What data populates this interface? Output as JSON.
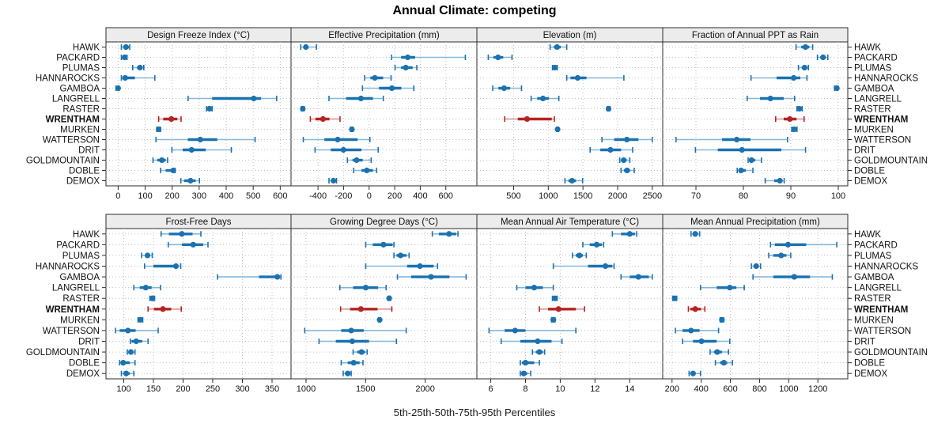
{
  "title": "Annual Climate: competing",
  "caption": "5th-25th-50th-75th-95th Percentiles",
  "sites": [
    "HAWK",
    "PACKARD",
    "PLUMAS",
    "HANNAROCKS",
    "GAMBOA",
    "LANGRELL",
    "RASTER",
    "WRENTHAM",
    "MURKEN",
    "WATTERSON",
    "DRIT",
    "GOLDMOUNTAIN",
    "DOBLE",
    "DEMOX"
  ],
  "highlight_site": "WRENTHAM",
  "colors": {
    "normal": "#1b72b0",
    "normal_light": "#85b7d9",
    "highlight": "#b62323",
    "highlight_light": "#d99090",
    "grid": "#bfbfbf",
    "border": "#2b2b2b",
    "strip_bg": "#ececec",
    "text": "#111111"
  },
  "chart_data": {
    "type": "dotplot-percentiles",
    "percentile_labels": [
      "5th",
      "25th",
      "50th",
      "75th",
      "95th"
    ],
    "note": "values arrays are [p5,p25,p50,p75,p95] per site, in sites order",
    "panels": [
      {
        "title": "Design Freeze Index (°C)",
        "ticks": [
          0,
          100,
          200,
          300,
          400,
          500,
          600
        ],
        "xlim": [
          -45,
          640
        ],
        "values": [
          [
            12,
            19,
            29,
            40,
            43
          ],
          [
            12,
            16,
            24,
            31,
            33
          ],
          [
            54,
            70,
            81,
            90,
            95
          ],
          [
            12,
            16,
            26,
            62,
            136
          ],
          [
            -8,
            -3,
            0,
            2,
            3
          ],
          [
            259,
            348,
            502,
            529,
            587
          ],
          [
            327,
            333,
            338,
            343,
            348
          ],
          [
            150,
            167,
            197,
            219,
            233
          ],
          [
            143,
            146,
            150,
            154,
            157
          ],
          [
            140,
            258,
            304,
            367,
            507
          ],
          [
            199,
            239,
            272,
            324,
            419
          ],
          [
            129,
            145,
            162,
            176,
            183
          ],
          [
            157,
            176,
            204,
            208,
            211
          ],
          [
            232,
            244,
            268,
            287,
            301
          ]
        ]
      },
      {
        "title": "Effective Precipitation (mm)",
        "ticks": [
          -400,
          -200,
          0,
          200,
          400,
          600
        ],
        "xlim": [
          -611,
          843
        ],
        "values": [
          [
            -535,
            -510,
            -495,
            -475,
            -412
          ],
          [
            176,
            250,
            302,
            360,
            753
          ],
          [
            203,
            250,
            287,
            340,
            373
          ],
          [
            -35,
            10,
            45,
            110,
            172
          ],
          [
            -52,
            77,
            178,
            252,
            350
          ],
          [
            -314,
            -180,
            -64,
            30,
            111
          ],
          [
            -530,
            -525,
            -519,
            -513,
            -508
          ],
          [
            -460,
            -420,
            -361,
            -310,
            -228
          ],
          [
            -145,
            -140,
            -135,
            -130,
            -125
          ],
          [
            -515,
            -350,
            -246,
            -90,
            6
          ],
          [
            -423,
            -300,
            -201,
            -60,
            71
          ],
          [
            -170,
            -130,
            -98,
            -50,
            16
          ],
          [
            -121,
            -60,
            -18,
            30,
            59
          ],
          [
            -314,
            -295,
            -279,
            -265,
            -255
          ]
        ]
      },
      {
        "title": "Elevation (m)",
        "ticks": [
          500,
          1000,
          1500,
          2000,
          2500
        ],
        "xlim": [
          -30,
          2650
        ],
        "values": [
          [
            1026,
            1080,
            1126,
            1180,
            1266
          ],
          [
            134,
            210,
            276,
            350,
            477
          ],
          [
            1060,
            1075,
            1095,
            1115,
            1130
          ],
          [
            1266,
            1320,
            1423,
            1550,
            2090
          ],
          [
            199,
            280,
            363,
            450,
            614
          ],
          [
            752,
            840,
            923,
            1010,
            1152
          ],
          [
            1850,
            1860,
            1869,
            1878,
            1888
          ],
          [
            371,
            560,
            694,
            1050,
            1088
          ],
          [
            1120,
            1127,
            1134,
            1141,
            1148
          ],
          [
            1774,
            1950,
            2133,
            2300,
            2499
          ],
          [
            1603,
            1750,
            1896,
            2050,
            2216
          ],
          [
            2030,
            2060,
            2087,
            2130,
            2175
          ],
          [
            2049,
            2090,
            2136,
            2180,
            2239
          ],
          [
            1240,
            1290,
            1343,
            1400,
            1495
          ]
        ]
      },
      {
        "title": "Fraction of Annual PPT as Rain",
        "ticks": [
          70,
          80,
          90,
          100
        ],
        "xlim": [
          63,
          102
        ],
        "values": [
          [
            91.1,
            92.2,
            93.1,
            93.9,
            94.6
          ],
          [
            95.6,
            96.2,
            96.8,
            97.3,
            97.8
          ],
          [
            91.6,
            92.3,
            92.9,
            93.3,
            93.7
          ],
          [
            81.6,
            87.0,
            90.6,
            92.0,
            93.4
          ],
          [
            99.2,
            99.5,
            99.7,
            99.8,
            99.9
          ],
          [
            80.8,
            83.5,
            85.7,
            88.5,
            90.8
          ],
          [
            91.3,
            91.6,
            91.8,
            92.1,
            92.4
          ],
          [
            86.8,
            88.5,
            89.8,
            91.2,
            92.8
          ],
          [
            90.2,
            90.5,
            90.7,
            91.0,
            91.3
          ],
          [
            65.8,
            75.5,
            78.6,
            81.5,
            89.3
          ],
          [
            69.9,
            74.6,
            79.7,
            88.0,
            93.1
          ],
          [
            81.0,
            81.4,
            81.7,
            82.5,
            83.8
          ],
          [
            78.7,
            79.1,
            79.5,
            80.5,
            82.0
          ],
          [
            84.6,
            86.5,
            87.7,
            88.2,
            88.6
          ]
        ]
      },
      {
        "title": "Frost-Free Days",
        "ticks": [
          100,
          150,
          200,
          250,
          300,
          350
        ],
        "xlim": [
          70,
          382
        ],
        "values": [
          [
            163,
            176,
            198,
            216,
            230
          ],
          [
            175,
            198,
            217,
            234,
            242
          ],
          [
            130,
            136,
            140,
            144,
            148
          ],
          [
            135,
            150,
            188,
            191,
            196
          ],
          [
            258,
            328,
            359,
            362,
            365
          ],
          [
            117,
            127,
            137,
            147,
            162
          ],
          [
            144,
            146,
            148,
            150,
            152
          ],
          [
            141,
            151,
            166,
            180,
            197
          ],
          [
            124,
            126,
            128,
            130,
            132
          ],
          [
            86,
            93,
            107,
            120,
            158
          ],
          [
            111,
            113,
            121,
            131,
            141
          ],
          [
            106,
            109,
            112,
            116,
            119
          ],
          [
            93,
            96,
            99,
            110,
            119
          ],
          [
            96,
            100,
            104,
            110,
            117
          ]
        ]
      },
      {
        "title": "Growing Degree Days (°C)",
        "ticks": [
          1000,
          1500,
          2000
        ],
        "xlim": [
          874,
          2434
        ],
        "values": [
          [
            2060,
            2115,
            2200,
            2260,
            2275
          ],
          [
            1501,
            1561,
            1650,
            1727,
            1738
          ],
          [
            1738,
            1760,
            1794,
            1843,
            1865
          ],
          [
            1501,
            1849,
            1956,
            2071,
            2104
          ],
          [
            1767,
            1882,
            2049,
            2204,
            2344
          ],
          [
            1284,
            1395,
            1501,
            1605,
            1672
          ],
          [
            1688,
            1693,
            1698,
            1703,
            1708
          ],
          [
            1290,
            1370,
            1460,
            1600,
            1720
          ],
          [
            1610,
            1614,
            1618,
            1622,
            1626
          ],
          [
            989,
            1295,
            1379,
            1484,
            1841
          ],
          [
            1109,
            1250,
            1388,
            1529,
            1759
          ],
          [
            1395,
            1430,
            1466,
            1495,
            1513
          ],
          [
            1295,
            1350,
            1400,
            1450,
            1478
          ],
          [
            1312,
            1330,
            1350,
            1365,
            1379
          ]
        ]
      },
      {
        "title": "Mean Annual Air Temperature (°C)",
        "ticks": [
          6,
          8,
          10,
          12,
          14
        ],
        "xlim": [
          5.2,
          15.9
        ],
        "values": [
          [
            13.0,
            13.5,
            14.0,
            14.3,
            14.4
          ],
          [
            11.3,
            11.7,
            12.1,
            12.4,
            12.5
          ],
          [
            10.7,
            10.9,
            11.1,
            11.3,
            11.5
          ],
          [
            9.6,
            11.6,
            12.6,
            13.0,
            13.1
          ],
          [
            13.5,
            14.0,
            14.5,
            15.1,
            15.3
          ],
          [
            7.5,
            8.0,
            8.5,
            9.0,
            9.6
          ],
          [
            9.55,
            9.62,
            9.7,
            9.76,
            9.82
          ],
          [
            8.8,
            9.3,
            9.9,
            10.9,
            11.4
          ],
          [
            9.5,
            9.55,
            9.6,
            9.65,
            9.7
          ],
          [
            5.9,
            6.8,
            7.4,
            8.0,
            10.9
          ],
          [
            6.6,
            7.7,
            8.7,
            9.5,
            10.1
          ],
          [
            8.4,
            8.6,
            8.8,
            9.0,
            9.1
          ],
          [
            7.7,
            7.8,
            8.0,
            8.5,
            8.8
          ],
          [
            7.7,
            7.8,
            7.9,
            8.1,
            8.3
          ]
        ]
      },
      {
        "title": "Mean Annual Precipitation (mm)",
        "ticks": [
          200,
          400,
          600,
          800,
          1000,
          1200
        ],
        "xlim": [
          136,
          1405
        ],
        "values": [
          [
            330,
            345,
            359,
            375,
            389
          ],
          [
            875,
            905,
            995,
            1120,
            1330
          ],
          [
            863,
            894,
            948,
            984,
            1014
          ],
          [
            744,
            760,
            777,
            793,
            807
          ],
          [
            755,
            894,
            1038,
            1146,
            1299
          ],
          [
            395,
            506,
            596,
            641,
            695
          ],
          [
            205,
            212,
            218,
            225,
            232
          ],
          [
            312,
            326,
            359,
            398,
            425
          ],
          [
            530,
            536,
            542,
            548,
            554
          ],
          [
            223,
            272,
            330,
            389,
            519
          ],
          [
            272,
            344,
            402,
            506,
            596
          ],
          [
            461,
            488,
            510,
            542,
            587
          ],
          [
            497,
            530,
            555,
            578,
            614
          ],
          [
            317,
            330,
            344,
            360,
            395
          ]
        ]
      }
    ]
  }
}
